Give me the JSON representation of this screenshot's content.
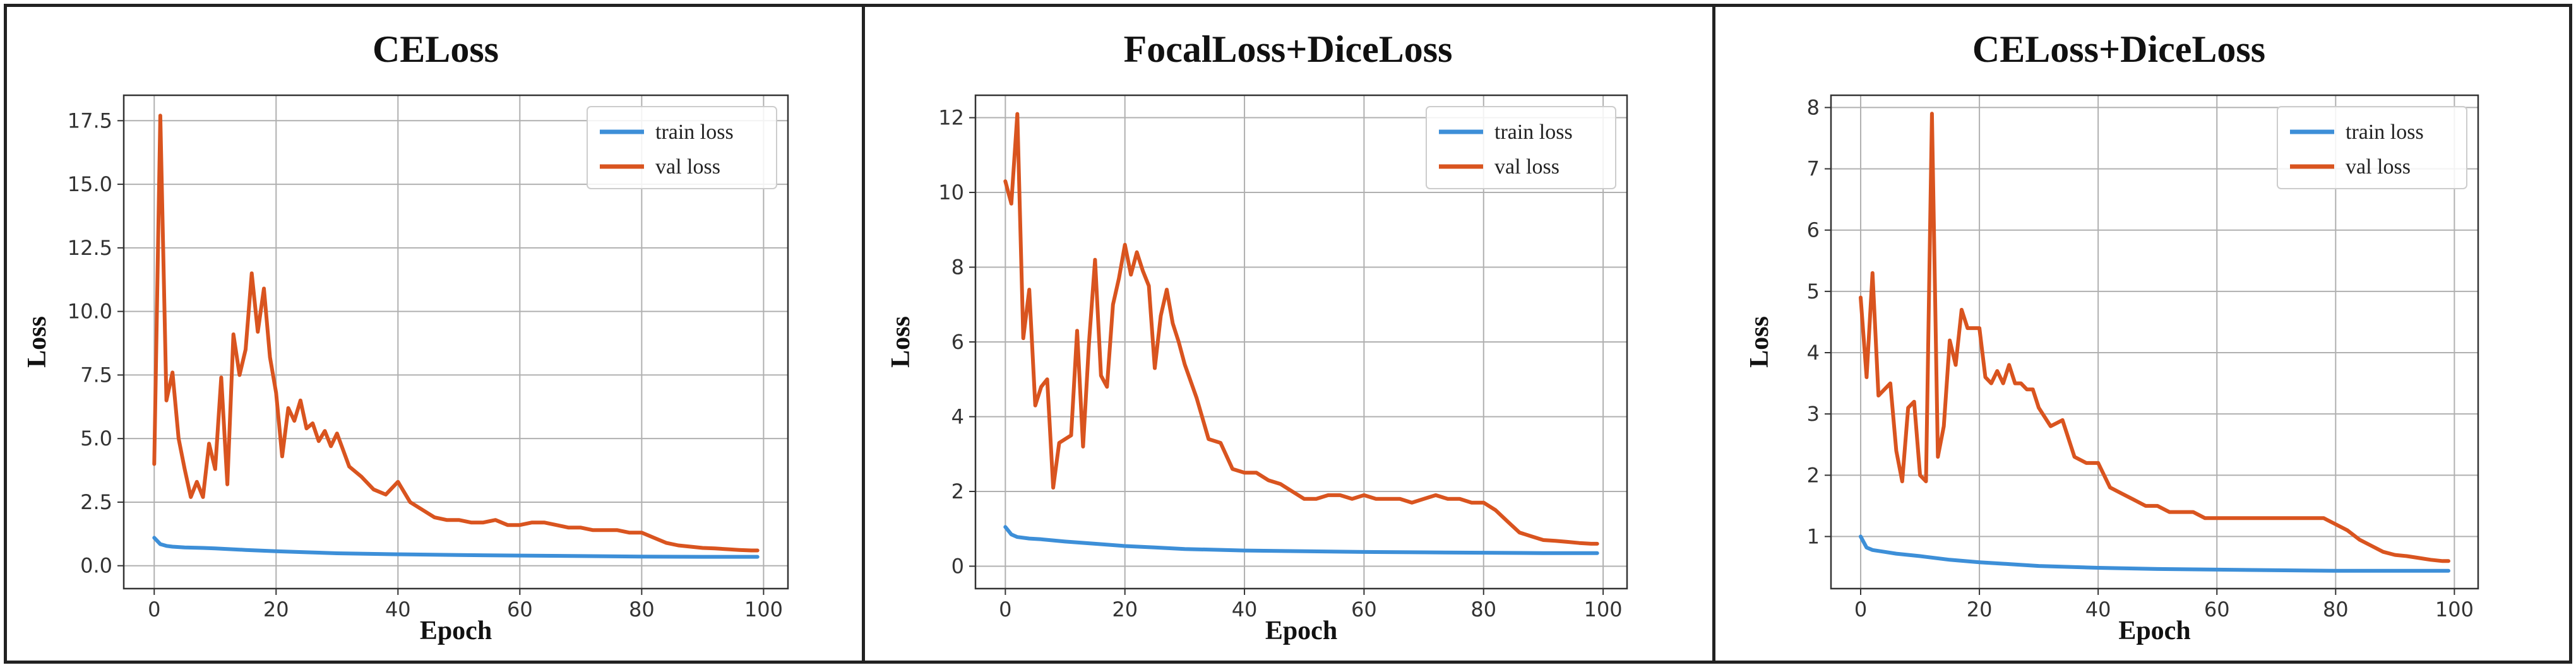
{
  "chart_data": [
    {
      "type": "line",
      "title": "CELoss",
      "xlabel": "Epoch",
      "ylabel": "Loss",
      "xlim": [
        -5,
        104
      ],
      "ylim": [
        -0.9,
        18.5
      ],
      "xticks": [
        0,
        20,
        40,
        60,
        80,
        100
      ],
      "xtick_labels": [
        "0",
        "20",
        "40",
        "60",
        "80",
        "100"
      ],
      "yticks": [
        0,
        2.5,
        5,
        7.5,
        10,
        12.5,
        15,
        17.5
      ],
      "ytick_labels": [
        "0.0",
        "2.5",
        "5.0",
        "7.5",
        "10.0",
        "12.5",
        "15.0",
        "17.5"
      ],
      "grid": true,
      "legend": "top-right",
      "series": [
        {
          "name": "train loss",
          "color": "#3d8fd8",
          "x": [
            0,
            1,
            2,
            3,
            5,
            8,
            10,
            15,
            20,
            25,
            30,
            40,
            50,
            60,
            70,
            80,
            90,
            99
          ],
          "y": [
            1.1,
            0.85,
            0.78,
            0.75,
            0.72,
            0.7,
            0.68,
            0.62,
            0.57,
            0.53,
            0.49,
            0.45,
            0.42,
            0.4,
            0.38,
            0.36,
            0.35,
            0.35
          ]
        },
        {
          "name": "val loss",
          "color": "#d9541f",
          "x": [
            0,
            1,
            2,
            3,
            4,
            5,
            6,
            7,
            8,
            9,
            10,
            11,
            12,
            13,
            14,
            15,
            16,
            17,
            18,
            19,
            20,
            21,
            22,
            23,
            24,
            25,
            26,
            27,
            28,
            29,
            30,
            32,
            34,
            36,
            38,
            40,
            42,
            44,
            46,
            48,
            50,
            52,
            54,
            56,
            58,
            60,
            62,
            64,
            66,
            68,
            70,
            72,
            74,
            76,
            78,
            80,
            82,
            84,
            86,
            88,
            90,
            92,
            94,
            96,
            98,
            99
          ],
          "y": [
            4.0,
            17.7,
            6.5,
            7.6,
            5.0,
            3.8,
            2.7,
            3.3,
            2.7,
            4.8,
            3.8,
            7.4,
            3.2,
            9.1,
            7.5,
            8.5,
            11.5,
            9.2,
            10.9,
            8.2,
            6.8,
            4.3,
            6.2,
            5.7,
            6.5,
            5.4,
            5.6,
            4.9,
            5.3,
            4.7,
            5.2,
            3.9,
            3.5,
            3.0,
            2.8,
            3.3,
            2.5,
            2.2,
            1.9,
            1.8,
            1.8,
            1.7,
            1.7,
            1.8,
            1.6,
            1.6,
            1.7,
            1.7,
            1.6,
            1.5,
            1.5,
            1.4,
            1.4,
            1.4,
            1.3,
            1.3,
            1.1,
            0.9,
            0.8,
            0.75,
            0.7,
            0.68,
            0.65,
            0.62,
            0.6,
            0.6
          ]
        }
      ]
    },
    {
      "type": "line",
      "title": "FocalLoss+DiceLoss",
      "xlabel": "Epoch",
      "ylabel": "Loss",
      "xlim": [
        -5,
        104
      ],
      "ylim": [
        -0.6,
        12.6
      ],
      "xticks": [
        0,
        20,
        40,
        60,
        80,
        100
      ],
      "xtick_labels": [
        "0",
        "20",
        "40",
        "60",
        "80",
        "100"
      ],
      "yticks": [
        0,
        2,
        4,
        6,
        8,
        10,
        12
      ],
      "ytick_labels": [
        "0",
        "2",
        "4",
        "6",
        "8",
        "10",
        "12"
      ],
      "grid": true,
      "legend": "top-right",
      "series": [
        {
          "name": "train loss",
          "color": "#3d8fd8",
          "x": [
            0,
            1,
            2,
            4,
            6,
            10,
            15,
            20,
            25,
            30,
            40,
            50,
            60,
            70,
            80,
            90,
            99
          ],
          "y": [
            1.05,
            0.85,
            0.78,
            0.74,
            0.72,
            0.66,
            0.6,
            0.54,
            0.5,
            0.46,
            0.42,
            0.4,
            0.38,
            0.37,
            0.36,
            0.35,
            0.35
          ]
        },
        {
          "name": "val loss",
          "color": "#d9541f",
          "x": [
            0,
            1,
            2,
            3,
            4,
            5,
            6,
            7,
            8,
            9,
            10,
            11,
            12,
            13,
            14,
            15,
            16,
            17,
            18,
            19,
            20,
            21,
            22,
            23,
            24,
            25,
            26,
            27,
            28,
            29,
            30,
            32,
            34,
            36,
            38,
            40,
            42,
            44,
            46,
            48,
            50,
            52,
            54,
            56,
            58,
            60,
            62,
            64,
            66,
            68,
            70,
            72,
            74,
            76,
            78,
            80,
            82,
            84,
            86,
            88,
            90,
            92,
            94,
            96,
            98,
            99
          ],
          "y": [
            10.3,
            9.7,
            12.1,
            6.1,
            7.4,
            4.3,
            4.8,
            5.0,
            2.1,
            3.3,
            3.4,
            3.5,
            6.3,
            3.2,
            6.0,
            8.2,
            5.1,
            4.8,
            7.0,
            7.7,
            8.6,
            7.8,
            8.4,
            7.9,
            7.5,
            5.3,
            6.7,
            7.4,
            6.5,
            6.0,
            5.4,
            4.5,
            3.4,
            3.3,
            2.6,
            2.5,
            2.5,
            2.3,
            2.2,
            2.0,
            1.8,
            1.8,
            1.9,
            1.9,
            1.8,
            1.9,
            1.8,
            1.8,
            1.8,
            1.7,
            1.8,
            1.9,
            1.8,
            1.8,
            1.7,
            1.7,
            1.5,
            1.2,
            0.9,
            0.8,
            0.7,
            0.68,
            0.65,
            0.62,
            0.6,
            0.6
          ]
        }
      ]
    },
    {
      "type": "line",
      "title": "CELoss+DiceLoss",
      "xlabel": "Epoch",
      "ylabel": "Loss",
      "xlim": [
        -5,
        104
      ],
      "ylim": [
        0.15,
        8.2
      ],
      "xticks": [
        0,
        20,
        40,
        60,
        80,
        100
      ],
      "xtick_labels": [
        "0",
        "20",
        "40",
        "60",
        "80",
        "100"
      ],
      "yticks": [
        1,
        2,
        3,
        4,
        5,
        6,
        7,
        8
      ],
      "ytick_labels": [
        "1",
        "2",
        "3",
        "4",
        "5",
        "6",
        "7",
        "8"
      ],
      "grid": true,
      "legend": "top-right",
      "series": [
        {
          "name": "train loss",
          "color": "#3d8fd8",
          "x": [
            0,
            1,
            2,
            4,
            6,
            10,
            15,
            20,
            25,
            30,
            40,
            50,
            60,
            70,
            80,
            90,
            99
          ],
          "y": [
            1.0,
            0.82,
            0.78,
            0.75,
            0.72,
            0.68,
            0.62,
            0.58,
            0.55,
            0.52,
            0.49,
            0.47,
            0.46,
            0.45,
            0.44,
            0.44,
            0.44
          ]
        },
        {
          "name": "val loss",
          "color": "#d9541f",
          "x": [
            0,
            1,
            2,
            3,
            4,
            5,
            6,
            7,
            8,
            9,
            10,
            11,
            12,
            13,
            14,
            15,
            16,
            17,
            18,
            19,
            20,
            21,
            22,
            23,
            24,
            25,
            26,
            27,
            28,
            29,
            30,
            32,
            34,
            36,
            38,
            40,
            42,
            44,
            46,
            48,
            50,
            52,
            54,
            56,
            58,
            60,
            62,
            64,
            66,
            68,
            70,
            72,
            74,
            76,
            78,
            80,
            82,
            84,
            86,
            88,
            90,
            92,
            94,
            96,
            98,
            99
          ],
          "y": [
            4.9,
            3.6,
            5.3,
            3.3,
            3.4,
            3.5,
            2.4,
            1.9,
            3.1,
            3.2,
            2.0,
            1.9,
            7.9,
            2.3,
            2.8,
            4.2,
            3.8,
            4.7,
            4.4,
            4.4,
            4.4,
            3.6,
            3.5,
            3.7,
            3.5,
            3.8,
            3.5,
            3.5,
            3.4,
            3.4,
            3.1,
            2.8,
            2.9,
            2.3,
            2.2,
            2.2,
            1.8,
            1.7,
            1.6,
            1.5,
            1.5,
            1.4,
            1.4,
            1.4,
            1.3,
            1.3,
            1.3,
            1.3,
            1.3,
            1.3,
            1.3,
            1.3,
            1.3,
            1.3,
            1.3,
            1.2,
            1.1,
            0.95,
            0.85,
            0.75,
            0.7,
            0.68,
            0.65,
            0.62,
            0.6,
            0.6
          ]
        }
      ]
    }
  ]
}
